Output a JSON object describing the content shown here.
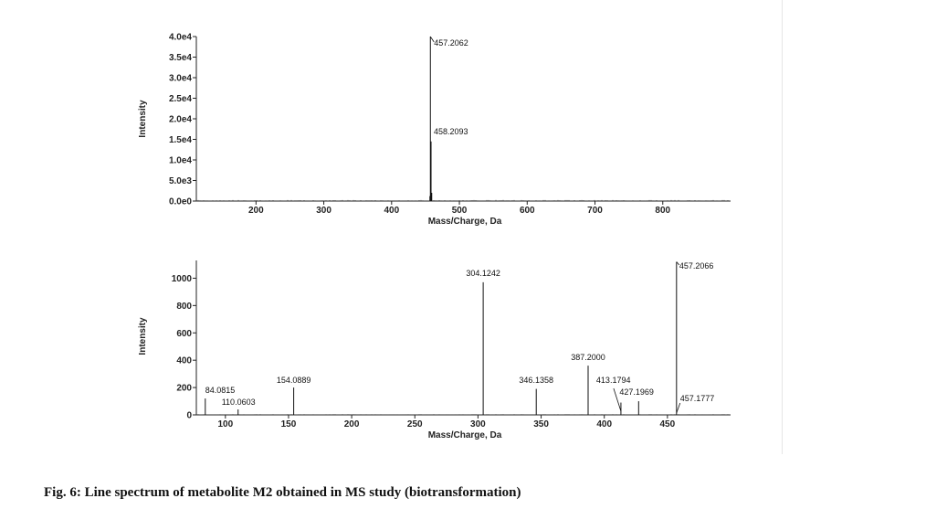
{
  "caption": "Fig. 6: Line spectrum of metabolite M2 obtained in MS study (biotransformation)",
  "chart_data": [
    {
      "type": "line",
      "subtype": "mass-spectrum",
      "xlabel": "Mass/Charge, Da",
      "ylabel": "Intensity",
      "xlim": [
        112,
        900
      ],
      "ylim": [
        0,
        40000
      ],
      "x_ticks": [
        200,
        300,
        400,
        500,
        600,
        700,
        800
      ],
      "y_ticks": [
        0,
        5000,
        10000,
        15000,
        20000,
        25000,
        30000,
        35000,
        40000
      ],
      "y_tick_labels": [
        "0.0e0",
        "5.0e3",
        "1.0e4",
        "1.5e4",
        "2.0e4",
        "2.5e4",
        "3.0e4",
        "3.5e4",
        "4.0e4"
      ],
      "peaks": [
        {
          "mz": 457.2062,
          "intensity": 40000,
          "label": "457.2062"
        },
        {
          "mz": 458.2093,
          "intensity": 14500,
          "label": "458.2093"
        },
        {
          "mz": 459.2,
          "intensity": 2000,
          "label": ""
        },
        {
          "mz": 456.5,
          "intensity": 1200,
          "label": ""
        }
      ],
      "grid": false,
      "legend": "none"
    },
    {
      "type": "line",
      "subtype": "mass-spectrum",
      "xlabel": "Mass/Charge, Da",
      "ylabel": "Intensity",
      "xlim": [
        77,
        500
      ],
      "ylim": [
        0,
        1130
      ],
      "x_ticks": [
        100,
        150,
        200,
        250,
        300,
        350,
        400,
        450
      ],
      "y_ticks": [
        0,
        200,
        400,
        600,
        800,
        1000
      ],
      "y_tick_labels": [
        "0",
        "200",
        "400",
        "600",
        "800",
        "1000"
      ],
      "peaks": [
        {
          "mz": 84.0815,
          "intensity": 120,
          "label": "84.0815"
        },
        {
          "mz": 110.0603,
          "intensity": 40,
          "label": "110.0603"
        },
        {
          "mz": 154.0889,
          "intensity": 200,
          "label": "154.0889"
        },
        {
          "mz": 304.1242,
          "intensity": 970,
          "label": "304.1242"
        },
        {
          "mz": 346.1358,
          "intensity": 190,
          "label": "346.1358"
        },
        {
          "mz": 387.2,
          "intensity": 360,
          "label": "387.2000"
        },
        {
          "mz": 413.1794,
          "intensity": 90,
          "label": "413.1794"
        },
        {
          "mz": 427.1969,
          "intensity": 100,
          "label": "427.1969"
        },
        {
          "mz": 457.2066,
          "intensity": 1120,
          "label": "457.2066"
        },
        {
          "mz": 457.1777,
          "intensity": 0,
          "label": "457.1777"
        }
      ],
      "grid": false,
      "legend": "none"
    }
  ]
}
